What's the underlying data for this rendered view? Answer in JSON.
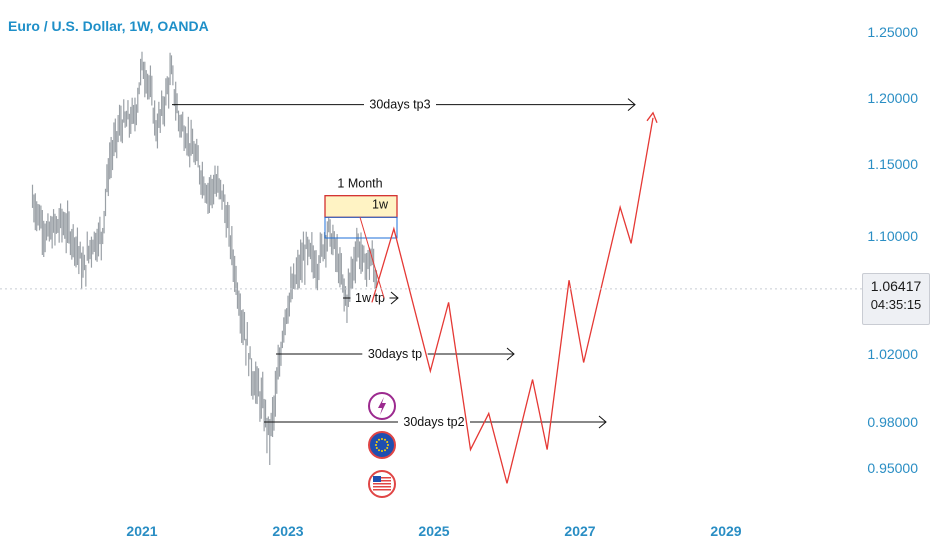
{
  "header": {
    "title": "Euro / U.S. Dollar, 1W, OANDA"
  },
  "price_axis": {
    "ticks": [
      "1.25000",
      "1.20000",
      "1.15000",
      "1.10000",
      "1.02000",
      "0.98000",
      "0.95000"
    ]
  },
  "time_axis": {
    "ticks": [
      "2021",
      "2023",
      "2025",
      "2027",
      "2029"
    ]
  },
  "current_price": {
    "value": "1.06417",
    "countdown": "04:35:15"
  },
  "annotations": {
    "tp3": "30days tp3",
    "tp": "30days tp",
    "tp2": "30days tp2",
    "one_week_tp": "1w tp",
    "one_month": "1 Month",
    "one_week": "1w"
  },
  "colors": {
    "bars": "#9aa0a6",
    "projection": "#e53935",
    "accent": "#2a8ec4",
    "zone_fill": "#fff3c4",
    "zone_border": "#d32f2f",
    "blue_box": "#1e6fd8"
  },
  "icons": [
    "lightning-event-icon",
    "eu-flag-icon",
    "us-flag-icon"
  ],
  "chart_data": {
    "type": "candlestick",
    "symbol": "EUR/USD",
    "timeframe": "1W",
    "series": [
      {
        "name": "Euro / U.S. Dollar",
        "kind": "price-bars"
      }
    ],
    "price_range": [
      0.93,
      1.26
    ],
    "time_range": [
      "2019-06",
      "2029-10"
    ],
    "last_price": 1.06417,
    "horizontal_targets": [
      {
        "label": "30days tp3",
        "price": 1.195
      },
      {
        "label": "30days tp",
        "price": 1.02
      },
      {
        "label": "30days tp2",
        "price": 0.98
      },
      {
        "label": "1w tp",
        "price": 1.058
      }
    ],
    "projection_path": [
      [
        2024.15,
        1.055
      ],
      [
        2024.45,
        1.105
      ],
      [
        2024.95,
        1.01
      ],
      [
        2025.2,
        1.055
      ],
      [
        2025.5,
        0.962
      ],
      [
        2025.75,
        0.985
      ],
      [
        2026.0,
        0.94
      ],
      [
        2026.35,
        1.005
      ],
      [
        2026.55,
        0.962
      ],
      [
        2026.85,
        1.07
      ],
      [
        2027.05,
        1.015
      ],
      [
        2027.55,
        1.12
      ],
      [
        2027.7,
        1.095
      ],
      [
        2028.0,
        1.185
      ]
    ]
  }
}
